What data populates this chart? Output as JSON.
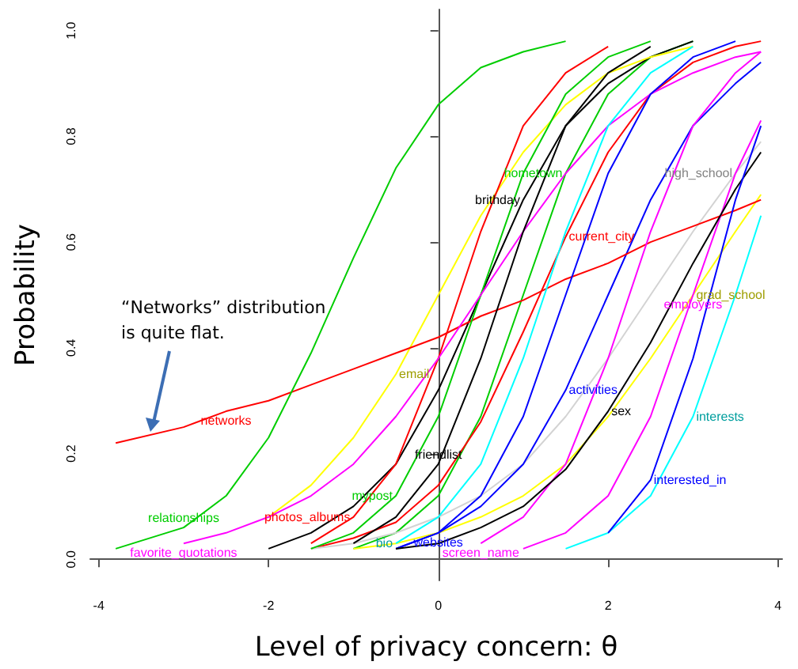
{
  "chart_data": {
    "type": "line",
    "xlabel": "Level of privacy concern: θ",
    "ylabel": "Probability",
    "marker": "none",
    "x": [
      -3.8,
      -3,
      -2.5,
      -2,
      -1.5,
      -1,
      -0.5,
      0,
      0.5,
      1,
      1.5,
      2,
      2.5,
      3,
      3.5,
      3.8
    ],
    "xlim": [
      -4.1,
      4.05
    ],
    "xticks": [
      -4,
      -2,
      0,
      2,
      4
    ],
    "ylim": [
      -0.04,
      1.04
    ],
    "yticks": [
      {
        "value": 0,
        "label": "0.0"
      },
      {
        "value": 0.2,
        "label": "0.2"
      },
      {
        "value": 0.4,
        "label": "0.4"
      },
      {
        "value": 0.6,
        "label": "0.6"
      },
      {
        "value": 0.8,
        "label": "0.8"
      },
      {
        "value": 1,
        "label": "1.0"
      }
    ],
    "series": [
      {
        "name": "hometown",
        "color": "#00cd00",
        "values": [
          null,
          null,
          null,
          null,
          null,
          0.02,
          0.05,
          0.12,
          0.27,
          0.5,
          0.73,
          0.88,
          0.95,
          0.98,
          null,
          null
        ]
      },
      {
        "name": "current_city",
        "color": "#ff0000",
        "values": [
          null,
          null,
          null,
          null,
          0.02,
          0.04,
          0.07,
          0.14,
          0.26,
          0.43,
          0.61,
          0.77,
          0.88,
          0.94,
          0.97,
          0.98
        ]
      },
      {
        "name": "brithday",
        "color": "#000000",
        "values": [
          null,
          null,
          null,
          0.02,
          0.05,
          0.1,
          0.18,
          0.32,
          0.5,
          0.68,
          0.82,
          0.9,
          0.95,
          0.98,
          null,
          null
        ]
      },
      {
        "name": "high_school",
        "color": "#d3d3d3",
        "values": [
          null,
          null,
          null,
          null,
          0.02,
          0.03,
          0.05,
          0.08,
          0.12,
          0.18,
          0.27,
          0.38,
          0.5,
          0.62,
          0.73,
          0.79
        ]
      },
      {
        "name": "grad_school",
        "color": "#ffff00",
        "values": [
          null,
          null,
          null,
          null,
          null,
          0.02,
          0.03,
          0.05,
          0.08,
          0.12,
          0.18,
          0.27,
          0.38,
          0.5,
          0.62,
          0.69
        ]
      },
      {
        "name": "email",
        "color": "#ffff00",
        "values": [
          null,
          null,
          null,
          0.08,
          0.14,
          0.23,
          0.35,
          0.5,
          0.65,
          0.77,
          0.86,
          0.92,
          0.95,
          0.97,
          null,
          null
        ]
      },
      {
        "name": "activities",
        "color": "#0000ff",
        "values": [
          null,
          null,
          null,
          null,
          null,
          null,
          0.02,
          0.05,
          0.1,
          0.18,
          0.32,
          0.5,
          0.68,
          0.82,
          0.9,
          0.94
        ]
      },
      {
        "name": "networks",
        "color": "#ff0000",
        "values": [
          0.22,
          0.25,
          0.28,
          0.3,
          0.33,
          0.36,
          0.39,
          0.42,
          0.46,
          0.49,
          0.53,
          0.56,
          0.6,
          0.63,
          0.66,
          0.68
        ]
      },
      {
        "name": "employers",
        "color": "#ff00ff",
        "values": [
          null,
          null,
          null,
          null,
          null,
          null,
          null,
          null,
          null,
          0.02,
          0.05,
          0.12,
          0.27,
          0.5,
          0.73,
          0.83
        ]
      },
      {
        "name": "relationships",
        "color": "#00cd00",
        "values": [
          0.02,
          0.06,
          0.12,
          0.23,
          0.39,
          0.57,
          0.74,
          0.86,
          0.93,
          0.96,
          0.98,
          null,
          null,
          null,
          null,
          null
        ]
      },
      {
        "name": "mypost",
        "color": "#00cd00",
        "values": [
          null,
          null,
          null,
          null,
          0.02,
          0.05,
          0.12,
          0.27,
          0.5,
          0.73,
          0.88,
          0.95,
          0.98,
          null,
          null,
          null
        ]
      },
      {
        "name": "interests",
        "color": "#00ffff",
        "values": [
          null,
          null,
          null,
          null,
          null,
          null,
          null,
          null,
          null,
          null,
          0.02,
          0.05,
          0.12,
          0.27,
          0.5,
          0.65
        ]
      },
      {
        "name": "photos_albums",
        "color": "#ff0000",
        "values": [
          null,
          null,
          null,
          null,
          0.03,
          0.08,
          0.18,
          0.38,
          0.62,
          0.82,
          0.92,
          0.97,
          null,
          null,
          null,
          null
        ]
      },
      {
        "name": "favorite_quotations",
        "color": "#ff00ff",
        "values": [
          null,
          0.03,
          0.05,
          0.08,
          0.12,
          0.18,
          0.27,
          0.38,
          0.5,
          0.62,
          0.73,
          0.82,
          0.88,
          0.92,
          0.95,
          0.96
        ]
      },
      {
        "name": "friendlist",
        "color": "#000000",
        "values": [
          null,
          null,
          null,
          null,
          null,
          0.03,
          0.08,
          0.18,
          0.38,
          0.62,
          0.82,
          0.92,
          0.97,
          null,
          null,
          null
        ]
      },
      {
        "name": "websites",
        "color": "#0000ff",
        "values": [
          null,
          null,
          null,
          null,
          null,
          null,
          0.02,
          0.05,
          0.12,
          0.27,
          0.5,
          0.73,
          0.88,
          0.95,
          0.98,
          null
        ]
      },
      {
        "name": "screen_name",
        "color": "#ff00ff",
        "values": [
          null,
          null,
          null,
          null,
          null,
          null,
          null,
          null,
          0.03,
          0.08,
          0.18,
          0.38,
          0.62,
          0.82,
          0.92,
          0.96
        ]
      },
      {
        "name": "sex",
        "color": "#000000",
        "values": [
          null,
          null,
          null,
          null,
          null,
          null,
          0.02,
          0.03,
          0.06,
          0.1,
          0.17,
          0.28,
          0.41,
          0.56,
          0.7,
          0.77
        ]
      },
      {
        "name": "interested_in",
        "color": "#0000ff",
        "values": [
          null,
          null,
          null,
          null,
          null,
          null,
          null,
          null,
          null,
          null,
          null,
          0.05,
          0.15,
          0.38,
          0.68,
          0.82
        ]
      },
      {
        "name": "bio",
        "color": "#00ffff",
        "values": [
          null,
          null,
          null,
          null,
          null,
          null,
          0.03,
          0.08,
          0.18,
          0.38,
          0.62,
          0.82,
          0.92,
          0.97,
          null,
          null
        ]
      }
    ],
    "annotations": [
      {
        "text": "“Networks” distribution is quite flat.",
        "x": -3.4,
        "y": 0.24
      }
    ]
  }
}
